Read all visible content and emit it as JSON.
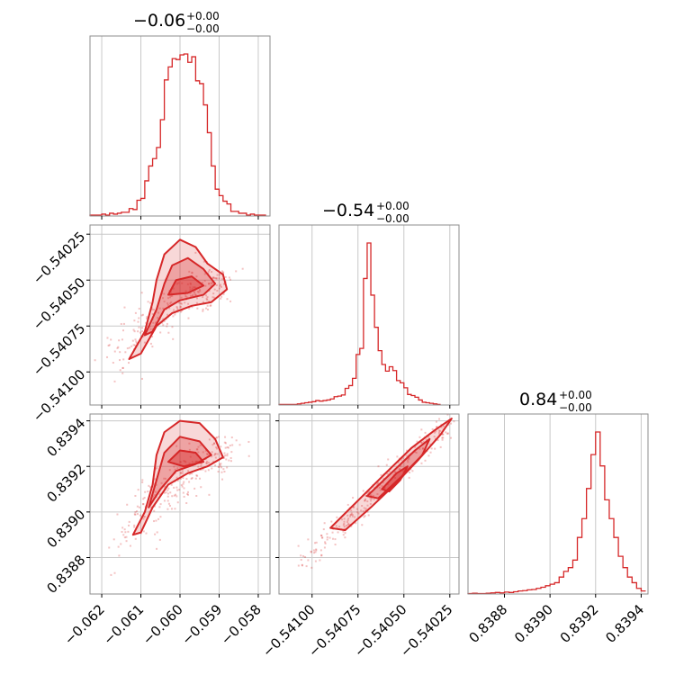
{
  "chart_data": {
    "type": "corner",
    "color": "#d62728",
    "grid": true,
    "parameters": [
      {
        "title_value": "−0.06",
        "title_plus": "+0.00",
        "title_minus": "−0.00",
        "range": [
          -0.0623,
          -0.0577
        ],
        "ticks": [
          -0.062,
          -0.061,
          -0.06,
          -0.059,
          -0.058
        ],
        "tick_labels": [
          "−0.062",
          "−0.061",
          "−0.060",
          "−0.059",
          "−0.058"
        ],
        "hist": {
          "start": -0.0623,
          "width": 0.0001,
          "counts": [
            1,
            1,
            1,
            2,
            1,
            3,
            2,
            3,
            4,
            4,
            8,
            7,
            17,
            19,
            38,
            54,
            62,
            74,
            104,
            147,
            161,
            170,
            169,
            174,
            175,
            166,
            172,
            146,
            143,
            120,
            90,
            54,
            29,
            22,
            16,
            13,
            5,
            5,
            3,
            3,
            1,
            2,
            1,
            1,
            1
          ]
        }
      },
      {
        "title_value": "−0.54",
        "title_plus": "+0.00",
        "title_minus": "−0.00",
        "range": [
          -0.54118,
          -0.5402
        ],
        "ticks": [
          -0.541,
          -0.54075,
          -0.5405,
          -0.54025
        ],
        "tick_labels": [
          "−0.54100",
          "−0.54075",
          "−0.54050",
          "−0.54025"
        ],
        "hist": {
          "start": -0.54118,
          "width": 2e-05,
          "counts": [
            1,
            1,
            1,
            1,
            1,
            2,
            3,
            4,
            5,
            6,
            8,
            7,
            8,
            9,
            11,
            15,
            16,
            18,
            30,
            35,
            48,
            91,
            102,
            228,
            292,
            198,
            140,
            98,
            73,
            61,
            69,
            62,
            44,
            40,
            31,
            19,
            17,
            14,
            9,
            5,
            4,
            3,
            2,
            1
          ]
        }
      },
      {
        "title_value": "0.84",
        "title_plus": "+0.00",
        "title_minus": "−0.00",
        "range": [
          0.83864,
          0.83943
        ],
        "ticks": [
          0.8388,
          0.839,
          0.8392,
          0.8394
        ],
        "tick_labels": [
          "0.8388",
          "0.8390",
          "0.8392",
          "0.8394"
        ],
        "hist": {
          "start": 0.83864,
          "width": 2e-05,
          "counts": [
            1,
            2,
            1,
            1,
            2,
            3,
            4,
            3,
            5,
            4,
            6,
            8,
            9,
            11,
            12,
            15,
            18,
            22,
            26,
            30,
            45,
            60,
            70,
            90,
            150,
            200,
            280,
            370,
            430,
            340,
            250,
            200,
            150,
            100,
            70,
            45,
            30,
            15,
            8
          ]
        }
      }
    ]
  }
}
